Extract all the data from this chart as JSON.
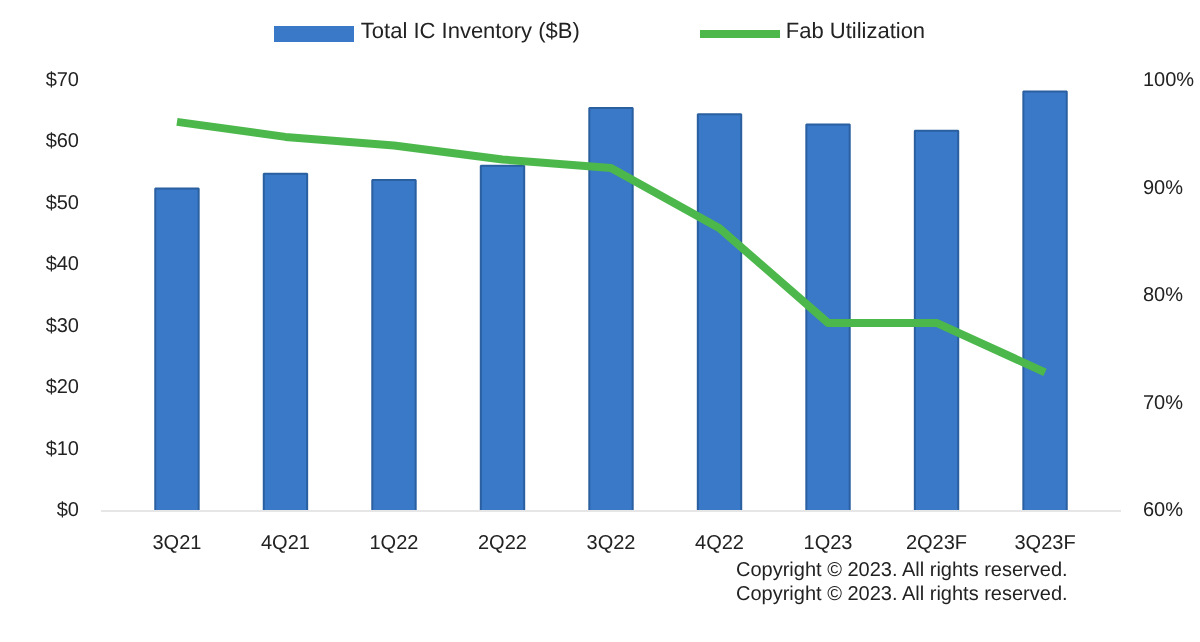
{
  "chart_data": {
    "type": "bar",
    "categories": [
      "3Q21",
      "4Q21",
      "1Q22",
      "2Q22",
      "3Q22",
      "4Q22",
      "1Q23",
      "2Q23F",
      "3Q23F"
    ],
    "series": [
      {
        "name": "Total IC Inventory ($B)",
        "color": "#3a78c8",
        "values": [
          52.5,
          54.9,
          53.9,
          56.2,
          65.6,
          64.6,
          62.9,
          61.9,
          68.3
        ]
      },
      {
        "name": "Fab Utilization",
        "type": "line",
        "axis": "y2",
        "color": "#4cb84c",
        "values": [
          96.2,
          94.8,
          94.0,
          92.7,
          91.9,
          86.3,
          77.5,
          77.5,
          72.9
        ]
      }
    ],
    "ylim": [
      0,
      70
    ],
    "yticks": [
      {
        "value": 0,
        "label": "$0"
      },
      {
        "value": 10,
        "label": "$10"
      },
      {
        "value": 20,
        "label": "$20"
      },
      {
        "value": 30,
        "label": "$30"
      },
      {
        "value": 40,
        "label": "$40"
      },
      {
        "value": 50,
        "label": "$50"
      },
      {
        "value": 60,
        "label": "$60"
      },
      {
        "value": 70,
        "label": "$70"
      }
    ],
    "y2lim": [
      60,
      100
    ],
    "y2ticks": [
      {
        "value": 60,
        "label": "60%"
      },
      {
        "value": 70,
        "label": "70%"
      },
      {
        "value": 80,
        "label": "80%"
      },
      {
        "value": 90,
        "label": "90%"
      },
      {
        "value": 100,
        "label": "100%"
      }
    ],
    "grid": false,
    "legend": "top",
    "annotations": [
      "Copyright © 2023.  All rights reserved.",
      "Copyright © 2023.  All rights reserved."
    ]
  }
}
